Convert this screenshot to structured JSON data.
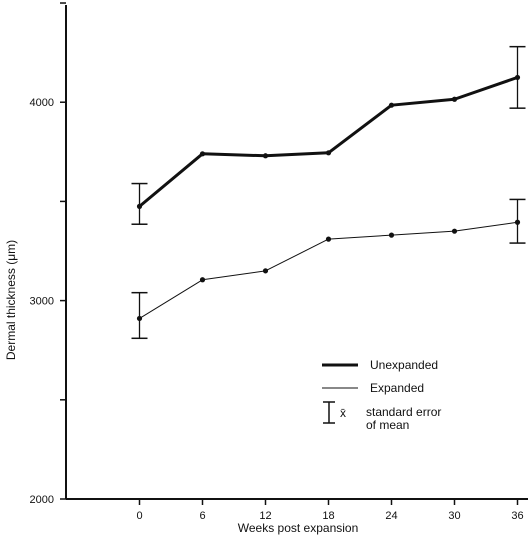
{
  "chart_data": {
    "type": "line",
    "title": "",
    "xlabel": "Weeks post expansion",
    "ylabel": "Dermal thickness (μm)",
    "x": [
      0,
      6,
      12,
      18,
      24,
      30,
      36
    ],
    "xticks": [
      "0",
      "6",
      "12",
      "18",
      "24",
      "30",
      "36"
    ],
    "yticks": [
      {
        "value": 2000,
        "label": "2000"
      },
      {
        "value": 2500,
        "label": ""
      },
      {
        "value": 3000,
        "label": "3000"
      },
      {
        "value": 3500,
        "label": ""
      },
      {
        "value": 4000,
        "label": "4000"
      },
      {
        "value": 4500,
        "label": ""
      }
    ],
    "ylim": [
      2000,
      4490
    ],
    "xlim": [
      -7,
      37
    ],
    "grid": false,
    "legend_position": "right-middle",
    "series": [
      {
        "name": "Unexpanded",
        "line_style": "thick",
        "values": [
          3475,
          3740,
          3730,
          3745,
          3985,
          4015,
          4125
        ],
        "error_bars": [
          {
            "x": 0,
            "low": 3385,
            "high": 3590
          },
          {
            "x": 36,
            "low": 3970,
            "high": 4280
          }
        ]
      },
      {
        "name": "Expanded",
        "line_style": "thin",
        "values": [
          2910,
          3105,
          3150,
          3310,
          3330,
          3350,
          3395
        ],
        "error_bars": [
          {
            "x": 0,
            "low": 2810,
            "high": 3040
          },
          {
            "x": 36,
            "low": 3290,
            "high": 3510
          }
        ]
      }
    ],
    "legend": {
      "entries": [
        "Unexpanded",
        "Expanded"
      ],
      "error_symbol": "x̄",
      "error_label_line1": "standard error",
      "error_label_line2": "of mean"
    }
  }
}
